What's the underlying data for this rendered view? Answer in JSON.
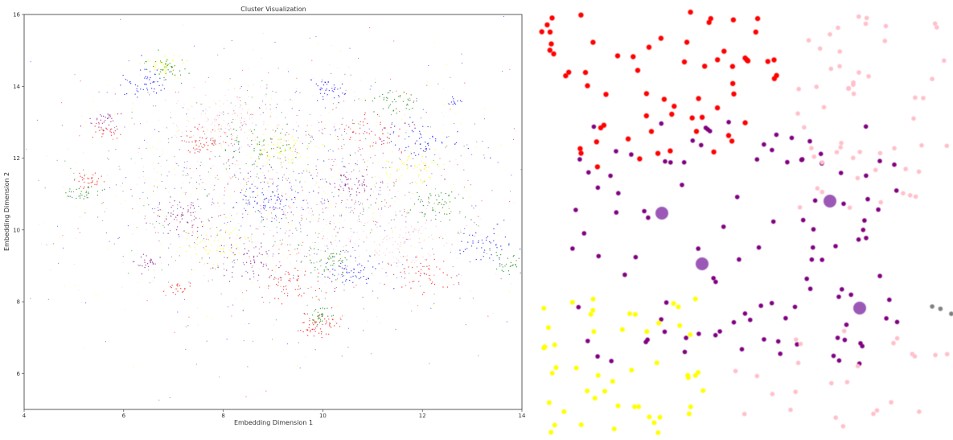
{
  "chart_data": [
    {
      "type": "scatter",
      "title": "Cluster Visualization",
      "xlabel": "Embedding Dimension 1",
      "ylabel": "Embedding Dimension 2",
      "xlim": [
        4,
        14
      ],
      "ylim": [
        5,
        16
      ],
      "xticks": [
        "4",
        "6",
        "8",
        "10",
        "12",
        "14"
      ],
      "yticks": [
        "6",
        "8",
        "10",
        "12",
        "14",
        "16"
      ],
      "grid": false,
      "point_colors": [
        "#ff0000",
        "#0000ff",
        "#008000",
        "#800080",
        "#ffff00",
        "#ffc0cb"
      ],
      "clusters": [
        {
          "color": "#ff0000",
          "center": [
            5.3,
            11.4
          ],
          "spread": 0.15,
          "count": 30
        },
        {
          "color": "#008000",
          "center": [
            5.2,
            11.0
          ],
          "spread": 0.15,
          "count": 30
        },
        {
          "color": "#800080",
          "center": [
            6.5,
            9.1
          ],
          "spread": 0.12,
          "count": 25
        },
        {
          "color": "#ff0000",
          "center": [
            7.1,
            8.4
          ],
          "spread": 0.12,
          "count": 20
        },
        {
          "color": "#ff0000",
          "center": [
            9.9,
            7.3
          ],
          "spread": 0.2,
          "count": 60
        },
        {
          "color": "#008000",
          "center": [
            9.9,
            7.6
          ],
          "spread": 0.15,
          "count": 30
        },
        {
          "color": "#0000ff",
          "center": [
            12.6,
            13.6
          ],
          "spread": 0.08,
          "count": 12
        },
        {
          "color": "#0000ff",
          "center": [
            10.1,
            13.9
          ],
          "spread": 0.2,
          "count": 40
        },
        {
          "color": "#800080",
          "center": [
            5.6,
            13.1
          ],
          "spread": 0.15,
          "count": 30
        },
        {
          "color": "#ff0000",
          "center": [
            5.6,
            12.8
          ],
          "spread": 0.15,
          "count": 25
        },
        {
          "color": "#008000",
          "center": [
            6.9,
            14.5
          ],
          "spread": 0.2,
          "count": 40
        },
        {
          "color": "#0000ff",
          "center": [
            6.5,
            14.1
          ],
          "spread": 0.25,
          "count": 50
        },
        {
          "color": "#ffff00",
          "center": [
            6.8,
            14.6
          ],
          "spread": 0.2,
          "count": 40
        },
        {
          "color": "#008000",
          "center": [
            11.4,
            13.6
          ],
          "spread": 0.25,
          "count": 40
        },
        {
          "color": "#0000ff",
          "center": [
            13.3,
            9.6
          ],
          "spread": 0.3,
          "count": 50
        },
        {
          "color": "#008000",
          "center": [
            13.8,
            9.1
          ],
          "spread": 0.2,
          "count": 40
        },
        {
          "color": "#ff0000",
          "center": [
            7.6,
            12.4
          ],
          "spread": 0.25,
          "count": 50
        },
        {
          "color": "#800080",
          "center": [
            10.6,
            11.3
          ],
          "spread": 0.3,
          "count": 60
        },
        {
          "color": "#0000ff",
          "center": [
            9.0,
            10.9
          ],
          "spread": 0.35,
          "count": 80
        },
        {
          "color": "#008000",
          "center": [
            12.3,
            10.7
          ],
          "spread": 0.25,
          "count": 50
        },
        {
          "color": "#ffff00",
          "center": [
            9.1,
            12.2
          ],
          "spread": 0.3,
          "count": 60
        },
        {
          "color": "#ffc0cb",
          "center": [
            8.0,
            13.0
          ],
          "spread": 0.5,
          "count": 120
        },
        {
          "color": "#ffc0cb",
          "center": [
            11.5,
            9.6
          ],
          "spread": 0.5,
          "count": 120
        },
        {
          "color": "#0000ff",
          "center": [
            10.6,
            8.8
          ],
          "spread": 0.3,
          "count": 60
        },
        {
          "color": "#ff0000",
          "center": [
            12.0,
            8.7
          ],
          "spread": 0.3,
          "count": 50
        },
        {
          "color": "#008000",
          "center": [
            10.2,
            9.1
          ],
          "spread": 0.3,
          "count": 50
        },
        {
          "color": "#ffff00",
          "center": [
            11.8,
            11.7
          ],
          "spread": 0.35,
          "count": 60
        },
        {
          "color": "#800080",
          "center": [
            7.2,
            10.4
          ],
          "spread": 0.3,
          "count": 60
        },
        {
          "color": "#ff0000",
          "center": [
            9.4,
            8.5
          ],
          "spread": 0.3,
          "count": 50
        },
        {
          "color": "#ffff00",
          "center": [
            7.9,
            9.6
          ],
          "spread": 0.35,
          "count": 60
        },
        {
          "color": "#0000ff",
          "center": [
            11.9,
            12.5
          ],
          "spread": 0.35,
          "count": 60
        },
        {
          "color": "#008000",
          "center": [
            8.7,
            12.4
          ],
          "spread": 0.4,
          "count": 60
        },
        {
          "color": "#ff0000",
          "center": [
            10.9,
            12.7
          ],
          "spread": 0.35,
          "count": 50
        },
        {
          "color": "#800080",
          "center": [
            8.6,
            9.1
          ],
          "spread": 0.35,
          "count": 60
        }
      ],
      "background_points": {
        "center": [
          9.2,
          11.0
        ],
        "spread": [
          2.2,
          1.7
        ],
        "count": 1800
      }
    },
    {
      "type": "scatter",
      "title": "",
      "xlabel": "",
      "ylabel": "",
      "grid": false,
      "groups": [
        {
          "color": "#ff0000",
          "x_range": [
            0,
            300
          ],
          "y_range": [
            15,
            210
          ],
          "count": 65,
          "radius": 3.2
        },
        {
          "color": "#800080",
          "x_range": [
            40,
            450
          ],
          "y_range": [
            150,
            455
          ],
          "count": 110,
          "radius": 2.8
        },
        {
          "color": "#ffff00",
          "x_range": [
            0,
            220
          ],
          "y_range": [
            370,
            540
          ],
          "count": 50,
          "radius": 3.0
        },
        {
          "color": "#ffc0cb",
          "x_range": [
            320,
            510
          ],
          "y_range": [
            20,
            260
          ],
          "count": 55,
          "radius": 2.8
        },
        {
          "color": "#ffc0cb",
          "x_range": [
            240,
            510
          ],
          "y_range": [
            400,
            540
          ],
          "count": 25,
          "radius": 2.8
        },
        {
          "color": "#808080",
          "x_range": [
            490,
            517
          ],
          "y_range": [
            370,
            395
          ],
          "count": 3,
          "radius": 2.8
        }
      ],
      "centroids": [
        {
          "label": "",
          "x": 155,
          "y": 265
        },
        {
          "label": "",
          "x": 205,
          "y": 328
        },
        {
          "label": "",
          "x": 364,
          "y": 250
        },
        {
          "label": "",
          "x": 401,
          "y": 383
        }
      ],
      "centroid_color": "#9b59b6"
    }
  ]
}
